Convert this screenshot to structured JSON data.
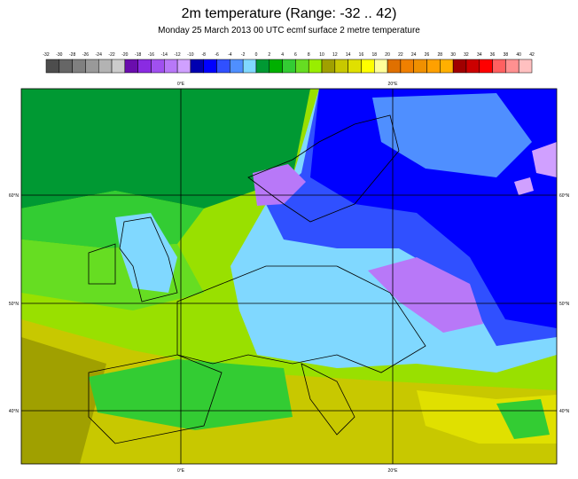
{
  "header": {
    "title": "2m temperature (Range: -32 .. 42)",
    "subtitle": "Monday 25 March 2013 00 UTC ecmf surface  2 metre temperature"
  },
  "colorbar": {
    "ticks": [
      -32,
      -30,
      -28,
      -26,
      -24,
      -22,
      -20,
      -18,
      -16,
      -14,
      -12,
      -10,
      -8,
      -6,
      -4,
      -2,
      0,
      2,
      4,
      6,
      8,
      10,
      12,
      14,
      16,
      18,
      20,
      22,
      24,
      26,
      28,
      30,
      32,
      34,
      36,
      38,
      40,
      42
    ],
    "colors": [
      "#4d4d4d",
      "#666666",
      "#808080",
      "#999999",
      "#b3b3b3",
      "#cccccc",
      "#6a0dad",
      "#8a2be2",
      "#a050f0",
      "#b878f8",
      "#d0a0ff",
      "#0000b0",
      "#0000ff",
      "#3050ff",
      "#4f8fff",
      "#80d8ff",
      "#009933",
      "#00b000",
      "#33cc33",
      "#66dd22",
      "#99ee00",
      "#a0a000",
      "#c8c800",
      "#e0e000",
      "#ffff00",
      "#ffff99",
      "#e07000",
      "#f08000",
      "#f09000",
      "#ffa000",
      "#ffb000",
      "#a00000",
      "#cc0000",
      "#ff0000",
      "#ff6060",
      "#ff9090",
      "#ffc0c0"
    ]
  },
  "map": {
    "lon_labels": [
      "0°E",
      "20°E"
    ],
    "lat_labels": [
      "60°N",
      "50°N",
      "40°N"
    ]
  }
}
